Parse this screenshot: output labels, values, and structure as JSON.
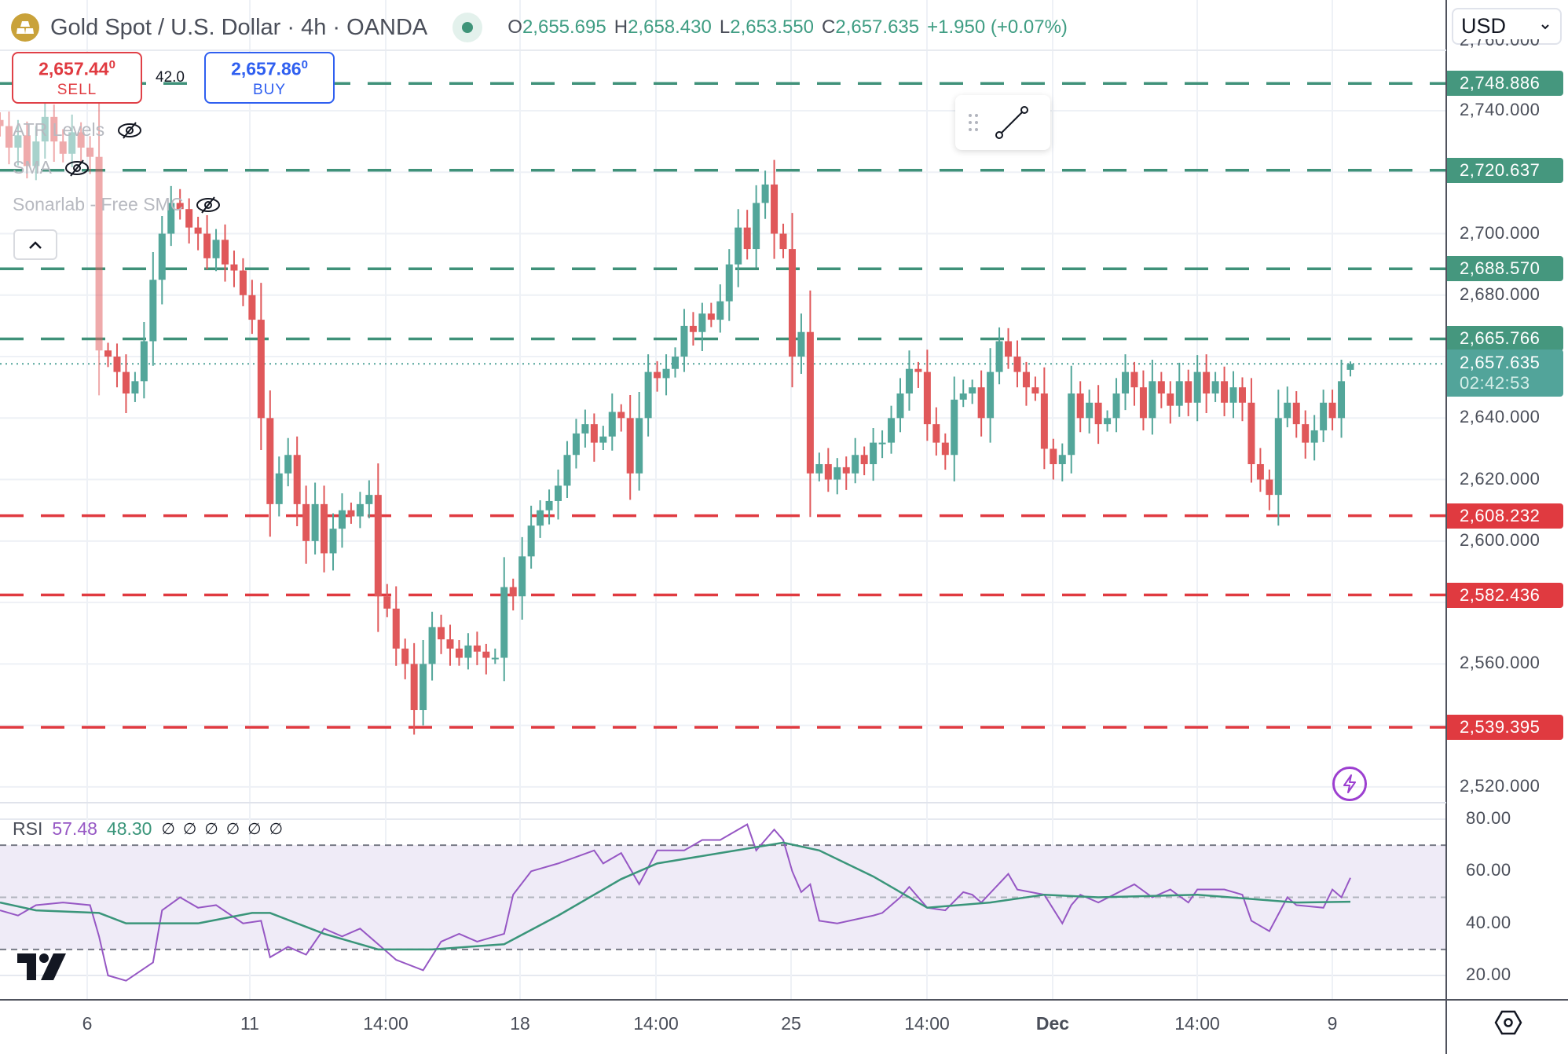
{
  "header": {
    "symbol_title": "Gold Spot / U.S. Dollar · 4h · OANDA",
    "market_status": "open",
    "ohlc": [
      {
        "key": "O",
        "value": "2,655.695"
      },
      {
        "key": "H",
        "value": "2,658.430"
      },
      {
        "key": "L",
        "value": "2,653.550"
      },
      {
        "key": "C",
        "value": "2,657.635"
      }
    ],
    "change": "+1.950 (+0.07%)"
  },
  "trade": {
    "sell_price": "2,657.44",
    "sell_price_sup": "0",
    "sell_label": "SELL",
    "spread": "42.0",
    "buy_price": "2,657.86",
    "buy_price_sup": "0",
    "buy_label": "BUY"
  },
  "indicators": [
    {
      "name": "ATR Levels",
      "visible": false
    },
    {
      "name": "SMA",
      "visible": false
    },
    {
      "name": "Sonarlab - Free SMC",
      "visible": false
    }
  ],
  "currency_select": {
    "value": "USD"
  },
  "colors": {
    "up": "#53a69a",
    "down": "#e0585a",
    "support_line": "#e03a40",
    "resistance_line": "#3f9179",
    "rsi": "#9657c4",
    "rsi_ma": "#3a957a",
    "rsi_band": "#efebf7",
    "current_price": "#52a49a"
  },
  "price_axis": {
    "ticks": [
      "2,760.000",
      "2,740.000",
      "2,700.000",
      "2,680.000",
      "2,640.000",
      "2,620.000",
      "2,600.000",
      "2,560.000",
      "2,520.000"
    ],
    "tick_values": [
      2760,
      2740,
      2700,
      2680,
      2640,
      2620,
      2600,
      2560,
      2520
    ]
  },
  "levels": [
    {
      "value": 2748.886,
      "label": "2,748.886",
      "kind": "resistance"
    },
    {
      "value": 2720.637,
      "label": "2,720.637",
      "kind": "resistance"
    },
    {
      "value": 2688.57,
      "label": "2,688.570",
      "kind": "resistance"
    },
    {
      "value": 2665.766,
      "label": "2,665.766",
      "kind": "resistance"
    },
    {
      "value": 2608.232,
      "label": "2,608.232",
      "kind": "support"
    },
    {
      "value": 2582.436,
      "label": "2,582.436",
      "kind": "support"
    },
    {
      "value": 2539.395,
      "label": "2,539.395",
      "kind": "support"
    }
  ],
  "current_price": {
    "value": 2657.635,
    "label": "2,657.635",
    "countdown": "02:42:53"
  },
  "time_axis": [
    "6",
    "11",
    "14:00",
    "18",
    "14:00",
    "25",
    "14:00",
    "Dec",
    "14:00",
    "9"
  ],
  "chart_data": [
    {
      "type": "candlestick",
      "title": "Gold Spot / U.S. Dollar · 4h · OANDA",
      "ylim": [
        2510,
        2770
      ],
      "last_candle": {
        "open": 2655.695,
        "high": 2658.43,
        "low": 2653.55,
        "close": 2657.635
      },
      "close": [
        2735,
        2728,
        2732,
        2722,
        2730,
        2738,
        2730,
        2726,
        2733,
        2728,
        2725,
        2662,
        2660,
        2655,
        2648,
        2652,
        2665,
        2685,
        2700,
        2710,
        2708,
        2702,
        2700,
        2692,
        2698,
        2690,
        2688,
        2680,
        2672,
        2640,
        2612,
        2622,
        2628,
        2612,
        2600,
        2612,
        2596,
        2604,
        2610,
        2608,
        2612,
        2615,
        2582,
        2578,
        2565,
        2560,
        2545,
        2560,
        2572,
        2568,
        2565,
        2562,
        2566,
        2564,
        2562,
        2562,
        2585,
        2582,
        2595,
        2605,
        2610,
        2613,
        2618,
        2628,
        2635,
        2638,
        2632,
        2634,
        2642,
        2640,
        2622,
        2640,
        2655,
        2653,
        2656,
        2660,
        2670,
        2668,
        2674,
        2672,
        2678,
        2690,
        2702,
        2695,
        2710,
        2716,
        2700,
        2695,
        2660,
        2668,
        2622,
        2625,
        2620,
        2624,
        2622,
        2628,
        2625,
        2632,
        2632,
        2640,
        2648,
        2656,
        2655,
        2638,
        2632,
        2628,
        2646,
        2648,
        2650,
        2640,
        2655,
        2665,
        2660,
        2655,
        2650,
        2648,
        2630,
        2625,
        2628,
        2648,
        2640,
        2645,
        2638,
        2640,
        2648,
        2655,
        2650,
        2640,
        2652,
        2648,
        2644,
        2652,
        2645,
        2655,
        2648,
        2652,
        2645,
        2650,
        2645,
        2625,
        2620,
        2615,
        2640,
        2645,
        2638,
        2632,
        2636,
        2645,
        2640,
        2652,
        2657.635
      ]
    },
    {
      "type": "line",
      "title": "RSI",
      "ylim": [
        10,
        85
      ],
      "ticks": [
        "80.00",
        "60.00",
        "40.00",
        "20.00"
      ],
      "tick_values": [
        80,
        60,
        40,
        20
      ],
      "bands": {
        "upper": 70,
        "middle": 50,
        "lower": 30
      },
      "series": [
        {
          "name": "RSI",
          "last": "57.48",
          "points": [
            [
              0,
              45
            ],
            [
              2,
              43
            ],
            [
              4,
              47
            ],
            [
              7,
              48
            ],
            [
              10,
              47
            ],
            [
              11,
              35
            ],
            [
              12,
              20
            ],
            [
              14,
              18
            ],
            [
              17,
              25
            ],
            [
              18,
              45
            ],
            [
              20,
              50
            ],
            [
              22,
              46
            ],
            [
              24,
              47
            ],
            [
              27,
              40
            ],
            [
              29,
              41
            ],
            [
              30,
              27
            ],
            [
              32,
              31
            ],
            [
              34,
              28
            ],
            [
              36,
              38
            ],
            [
              38,
              35
            ],
            [
              40,
              38
            ],
            [
              43,
              29
            ],
            [
              44,
              26
            ],
            [
              47,
              22
            ],
            [
              49,
              33
            ],
            [
              51,
              36
            ],
            [
              53,
              33
            ],
            [
              56,
              36
            ],
            [
              57,
              51
            ],
            [
              59,
              60
            ],
            [
              62,
              63
            ],
            [
              66,
              68
            ],
            [
              67,
              63
            ],
            [
              69,
              67
            ],
            [
              71,
              55
            ],
            [
              73,
              68
            ],
            [
              76,
              68
            ],
            [
              78,
              72
            ],
            [
              80,
              72
            ],
            [
              83,
              78
            ],
            [
              84,
              68
            ],
            [
              86,
              76
            ],
            [
              87,
              72
            ],
            [
              88,
              60
            ],
            [
              89,
              52
            ],
            [
              90,
              55
            ],
            [
              91,
              41
            ],
            [
              93,
              40
            ],
            [
              97,
              43
            ],
            [
              98,
              44
            ],
            [
              100,
              50
            ],
            [
              101,
              54
            ],
            [
              103,
              46
            ],
            [
              105,
              45
            ],
            [
              107,
              52
            ],
            [
              108,
              51
            ],
            [
              109,
              48
            ],
            [
              112,
              59
            ],
            [
              113,
              53
            ],
            [
              116,
              51
            ],
            [
              118,
              40
            ],
            [
              119,
              47
            ],
            [
              120,
              51
            ],
            [
              122,
              48
            ],
            [
              126,
              55
            ],
            [
              128,
              50
            ],
            [
              130,
              53
            ],
            [
              132,
              48
            ],
            [
              133,
              53
            ],
            [
              136,
              53
            ],
            [
              138,
              51
            ],
            [
              139,
              41
            ],
            [
              141,
              37
            ],
            [
              143,
              50
            ],
            [
              144,
              47
            ],
            [
              147,
              46
            ],
            [
              148,
              53
            ],
            [
              149,
              50
            ],
            [
              150,
              57.48
            ]
          ]
        },
        {
          "name": "RSI-based MA",
          "last": "48.30",
          "points": [
            [
              0,
              48
            ],
            [
              4,
              45
            ],
            [
              11,
              44
            ],
            [
              14,
              40
            ],
            [
              22,
              40
            ],
            [
              28,
              44
            ],
            [
              30,
              44
            ],
            [
              36,
              36
            ],
            [
              42,
              30
            ],
            [
              48,
              30
            ],
            [
              56,
              32
            ],
            [
              62,
              43
            ],
            [
              69,
              57
            ],
            [
              73,
              63
            ],
            [
              80,
              67
            ],
            [
              87,
              71
            ],
            [
              91,
              68
            ],
            [
              97,
              58
            ],
            [
              103,
              46
            ],
            [
              110,
              48
            ],
            [
              116,
              51
            ],
            [
              122,
              50
            ],
            [
              133,
              51
            ],
            [
              144,
              48
            ],
            [
              150,
              48.3
            ]
          ]
        }
      ],
      "legend_placeholders": [
        "∅",
        "∅",
        "∅",
        "∅",
        "∅",
        "∅"
      ]
    }
  ]
}
